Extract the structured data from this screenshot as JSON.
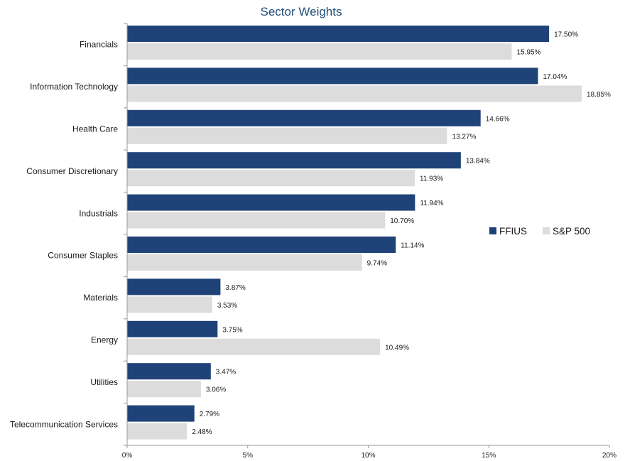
{
  "chart_data": {
    "type": "bar",
    "orientation": "horizontal",
    "title": "Sector Weights",
    "categories": [
      "Financials",
      "Information Technology",
      "Health Care",
      "Consumer Discretionary",
      "Industrials",
      "Consumer Staples",
      "Materials",
      "Energy",
      "Utilities",
      "Telecommunication Services"
    ],
    "series": [
      {
        "name": "FFIUS",
        "color": "#1f4279",
        "values": [
          17.5,
          17.04,
          14.66,
          13.84,
          11.94,
          11.14,
          3.87,
          3.75,
          3.47,
          2.79
        ],
        "labels": [
          "17.50%",
          "17.04%",
          "14.66%",
          "13.84%",
          "11.94%",
          "11.14%",
          "3.87%",
          "3.75%",
          "3.47%",
          "2.79%"
        ]
      },
      {
        "name": "S&P 500",
        "color": "#dcdcdc",
        "values": [
          15.95,
          18.85,
          13.27,
          11.93,
          10.7,
          9.74,
          3.53,
          10.49,
          3.06,
          2.48
        ],
        "labels": [
          "15.95%",
          "18.85%",
          "13.27%",
          "11.93%",
          "10.70%",
          "9.74%",
          "3.53%",
          "10.49%",
          "3.06%",
          "2.48%"
        ]
      }
    ],
    "xlim": [
      0,
      20
    ],
    "xticks": [
      "0%",
      "5%",
      "10%",
      "15%",
      "20%"
    ],
    "xlabel": "",
    "ylabel": "",
    "grid": false,
    "legend_position": "right"
  }
}
